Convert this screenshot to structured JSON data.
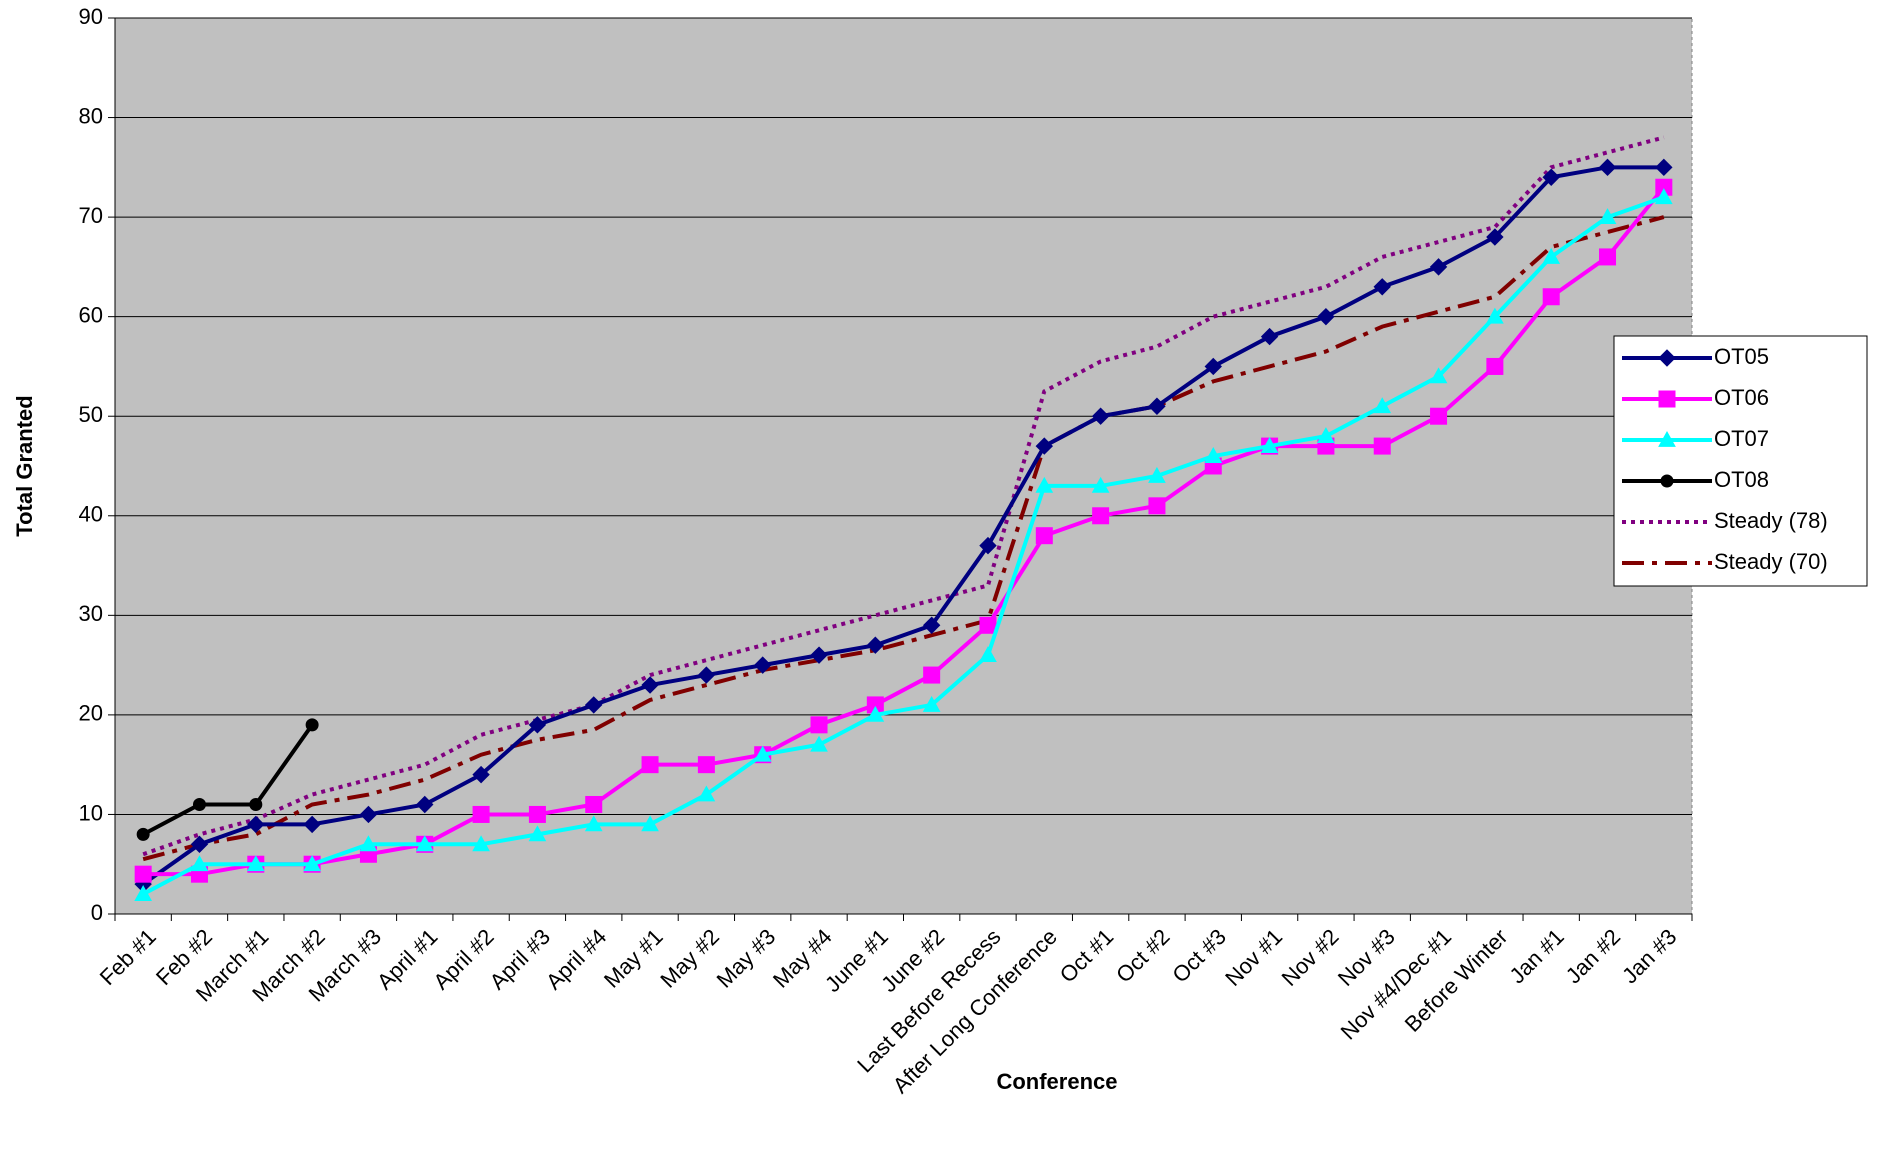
{
  "chart_data": {
    "type": "line",
    "x_label": "Conference",
    "y_label": "Total Granted",
    "categories": [
      "Feb #1",
      "Feb #2",
      "March #1",
      "March #2",
      "March #3",
      "April #1",
      "April #2",
      "April #3",
      "April #4",
      "May #1",
      "May #2",
      "May #3",
      "May #4",
      "June #1",
      "June #2",
      "Last Before Recess",
      "After Long Conference",
      "Oct #1",
      "Oct #2",
      "Oct #3",
      "Nov #1",
      "Nov #2",
      "Nov #3",
      "Nov #4/Dec #1",
      "Before Winter",
      "Jan #1",
      "Jan #2",
      "Jan #3"
    ],
    "series": [
      {
        "name": "OT05",
        "color": "#000080",
        "marker": "diamond",
        "dash": "solid",
        "values": [
          3,
          7,
          9,
          9,
          10,
          11,
          14,
          19,
          21,
          23,
          24,
          25,
          26,
          27,
          29,
          37,
          47,
          50,
          51,
          55,
          58,
          60,
          63,
          65,
          68,
          74,
          75,
          75
        ]
      },
      {
        "name": "OT06",
        "color": "#ff00ff",
        "marker": "square",
        "dash": "solid",
        "values": [
          4,
          4,
          5,
          5,
          6,
          7,
          10,
          10,
          11,
          15,
          15,
          16,
          19,
          21,
          24,
          29,
          38,
          40,
          41,
          45,
          47,
          47,
          47,
          50,
          55,
          62,
          66,
          73
        ]
      },
      {
        "name": "OT07",
        "color": "#00ffff",
        "marker": "triangle",
        "dash": "solid",
        "values": [
          2,
          5,
          5,
          5,
          7,
          7,
          7,
          8,
          9,
          9,
          12,
          16,
          17,
          20,
          21,
          26,
          43,
          43,
          44,
          46,
          47,
          48,
          51,
          54,
          60,
          66,
          70,
          72
        ]
      },
      {
        "name": "OT08",
        "color": "#000000",
        "marker": "circle",
        "dash": "solid",
        "values": [
          8,
          11,
          11,
          19,
          null,
          null,
          null,
          null,
          null,
          null,
          null,
          null,
          null,
          null,
          null,
          null,
          null,
          null,
          null,
          null,
          null,
          null,
          null,
          null,
          null,
          null,
          null,
          null
        ]
      },
      {
        "name": "Steady (78)",
        "color": "#800080",
        "marker": "none",
        "dash": "dot",
        "values": [
          6,
          8,
          9.5,
          12,
          13.5,
          15,
          18,
          19.5,
          21,
          24,
          25.5,
          27,
          28.5,
          30,
          31.5,
          33,
          52.5,
          55.5,
          57,
          60,
          61.5,
          63,
          66,
          67.5,
          69,
          75,
          76.5,
          78
        ]
      },
      {
        "name": "Steady (70)",
        "color": "#800000",
        "marker": "none",
        "dash": "dashdot",
        "values": [
          5.5,
          7,
          8,
          11,
          12,
          13.5,
          16,
          17.5,
          18.5,
          21.5,
          23,
          24.5,
          25.5,
          26.5,
          28,
          29.5,
          47,
          50,
          51,
          53.5,
          55,
          56.5,
          59,
          60.5,
          62,
          67,
          68.5,
          70
        ]
      }
    ],
    "ylim": [
      0,
      90
    ],
    "yticks": [
      0,
      10,
      20,
      30,
      40,
      50,
      60,
      70,
      80,
      90
    ],
    "grid": true,
    "legend": "right",
    "plot_background": "#c0c0c0"
  }
}
